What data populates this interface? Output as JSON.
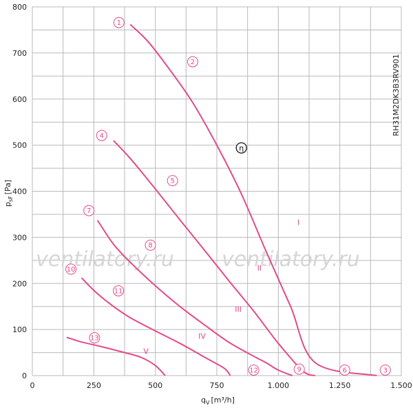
{
  "chart_data": {
    "type": "line",
    "title": "",
    "xlabel": "q",
    "xlabel_sub": "V",
    "xlabel_unit": "[m³/h]",
    "ylabel": "p",
    "ylabel_sub": "sF",
    "ylabel_unit": "[Pa]",
    "xlim": [
      0,
      1500
    ],
    "ylim": [
      0,
      800
    ],
    "x_ticks": [
      0,
      250,
      500,
      750,
      1000,
      1250,
      1500
    ],
    "x_tick_labels": [
      "0",
      "250",
      "500",
      "750",
      "1.000",
      "1.250",
      "1.500"
    ],
    "y_ticks": [
      0,
      100,
      200,
      300,
      400,
      500,
      600,
      700,
      800
    ],
    "y_tick_labels": [
      "0",
      "100",
      "200",
      "300",
      "400",
      "500",
      "600",
      "700",
      "800"
    ],
    "grid": true,
    "model_label": "RH31M2DK3B3RV901",
    "watermarks": [
      "ventilatory.ru",
      "ventilatory.ru"
    ],
    "eta_symbol": "η",
    "eta_point": {
      "x": 850,
      "y": 494
    },
    "series": [
      {
        "name": "I",
        "label_at": [
          1082,
          327
        ],
        "points": [
          [
            398,
            762
          ],
          [
            470,
            725
          ],
          [
            550,
            670
          ],
          [
            650,
            594
          ],
          [
            750,
            500
          ],
          [
            850,
            394
          ],
          [
            950,
            273
          ],
          [
            1050,
            151
          ],
          [
            1150,
            30
          ],
          [
            1200,
            -30
          ],
          [
            1270,
            -70
          ],
          [
            1400,
            0
          ]
        ],
        "values_clean": [
          [
            398,
            762
          ],
          [
            470,
            725
          ],
          [
            550,
            670
          ],
          [
            650,
            594
          ],
          [
            750,
            500
          ],
          [
            850,
            394
          ],
          [
            950,
            270
          ],
          [
            1050,
            150
          ],
          [
            1150,
            28
          ]
        ]
      },
      {
        "name": "II",
        "label_at": [
          923,
          228
        ],
        "points": [
          [
            330,
            510
          ],
          [
            400,
            470
          ],
          [
            500,
            405
          ],
          [
            600,
            338
          ],
          [
            700,
            272
          ],
          [
            800,
            205
          ],
          [
            900,
            140
          ],
          [
            1000,
            70
          ],
          [
            1100,
            10
          ],
          [
            1150,
            0
          ]
        ]
      },
      {
        "name": "III",
        "label_at": [
          837,
          138
        ],
        "points": [
          [
            265,
            337
          ],
          [
            330,
            285
          ],
          [
            400,
            245
          ],
          [
            500,
            195
          ],
          [
            600,
            150
          ],
          [
            700,
            110
          ],
          [
            800,
            72
          ],
          [
            900,
            42
          ],
          [
            950,
            28
          ],
          [
            1000,
            12
          ],
          [
            1057,
            0
          ]
        ]
      },
      {
        "name": "IV",
        "label_at": [
          690,
          80
        ],
        "points": [
          [
            200,
            212
          ],
          [
            260,
            180
          ],
          [
            330,
            150
          ],
          [
            400,
            125
          ],
          [
            500,
            97
          ],
          [
            600,
            70
          ],
          [
            700,
            40
          ],
          [
            780,
            16
          ],
          [
            805,
            0
          ]
        ]
      },
      {
        "name": "V",
        "label_at": [
          462,
          47
        ],
        "points": [
          [
            140,
            83
          ],
          [
            200,
            73
          ],
          [
            280,
            63
          ],
          [
            360,
            52
          ],
          [
            440,
            40
          ],
          [
            500,
            22
          ],
          [
            540,
            0
          ]
        ]
      }
    ],
    "markers": [
      {
        "label": "1",
        "x": 352,
        "y": 766
      },
      {
        "label": "2",
        "x": 652,
        "y": 681
      },
      {
        "label": "3",
        "x": 1435,
        "y": 12
      },
      {
        "label": "4",
        "x": 282,
        "y": 521
      },
      {
        "label": "5",
        "x": 570,
        "y": 423
      },
      {
        "label": "6",
        "x": 1270,
        "y": 12
      },
      {
        "label": "7",
        "x": 230,
        "y": 358
      },
      {
        "label": "8",
        "x": 480,
        "y": 283
      },
      {
        "label": "9",
        "x": 1085,
        "y": 14
      },
      {
        "label": "10",
        "x": 157,
        "y": 231
      },
      {
        "label": "11",
        "x": 350,
        "y": 184
      },
      {
        "label": "12",
        "x": 900,
        "y": 12
      },
      {
        "label": "13",
        "x": 253,
        "y": 82
      }
    ]
  }
}
